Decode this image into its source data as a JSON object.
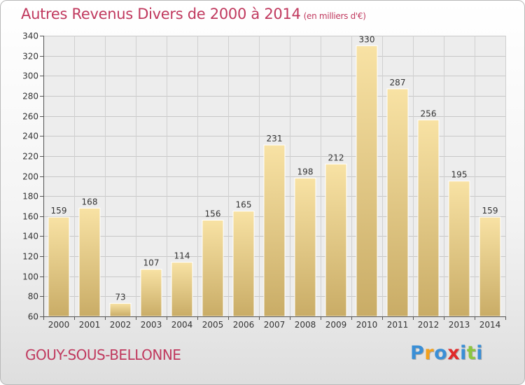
{
  "title": "Autres Revenus Divers de 2000 à 2014",
  "unit": "(en milliers d'€)",
  "town": "GOUY-SOUS-BELLONNE",
  "logo": {
    "letters": [
      "P",
      "r",
      "o",
      "x",
      "i",
      "t",
      "i"
    ],
    "colors": [
      "#3a8fd6",
      "#f2a01c",
      "#3a8fd6",
      "#e02a2a",
      "#3a8fd6",
      "#8cc63f",
      "#3a8fd6"
    ]
  },
  "chart_data": {
    "type": "bar",
    "categories": [
      "2000",
      "2001",
      "2002",
      "2003",
      "2004",
      "2005",
      "2006",
      "2007",
      "2008",
      "2009",
      "2010",
      "2011",
      "2012",
      "2013",
      "2014"
    ],
    "values": [
      159,
      168,
      73,
      107,
      114,
      156,
      165,
      231,
      198,
      212,
      330,
      287,
      256,
      195,
      159
    ],
    "ylim": [
      60,
      340
    ],
    "yticks": [
      60,
      80,
      100,
      120,
      140,
      160,
      180,
      200,
      220,
      240,
      260,
      280,
      300,
      320,
      340
    ],
    "grid": true,
    "bar_color": "#f3d894"
  }
}
